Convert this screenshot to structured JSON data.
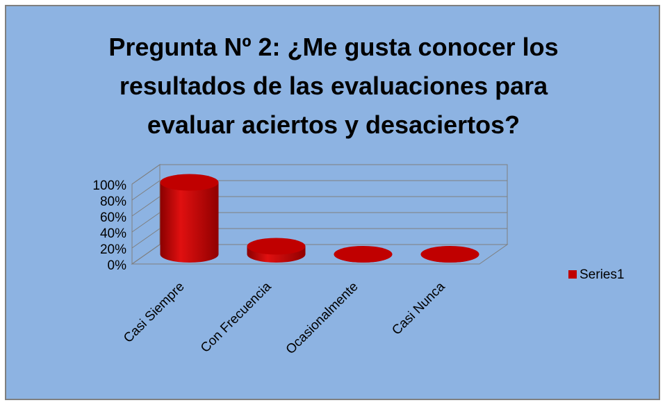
{
  "chart_data": {
    "type": "bar3d",
    "title": "Pregunta Nº 2: ¿Me gusta conocer los resultados de las evaluaciones para evaluar aciertos y desaciertos?",
    "categories": [
      "Casi Siempre",
      "Con Frecuencia",
      "Ocasionalmente",
      "Casi Nunca"
    ],
    "series": [
      {
        "name": "Series1",
        "color": "#c00000",
        "values": [
          90,
          10,
          0,
          0
        ]
      }
    ],
    "ylim": [
      0,
      100
    ],
    "yticks": [
      {
        "value": 0,
        "label": "0%"
      },
      {
        "value": 20,
        "label": "20%"
      },
      {
        "value": 40,
        "label": "40%"
      },
      {
        "value": 60,
        "label": "60%"
      },
      {
        "value": 80,
        "label": "80%"
      },
      {
        "value": 100,
        "label": "100%"
      }
    ],
    "grid": true,
    "legend": "right"
  }
}
